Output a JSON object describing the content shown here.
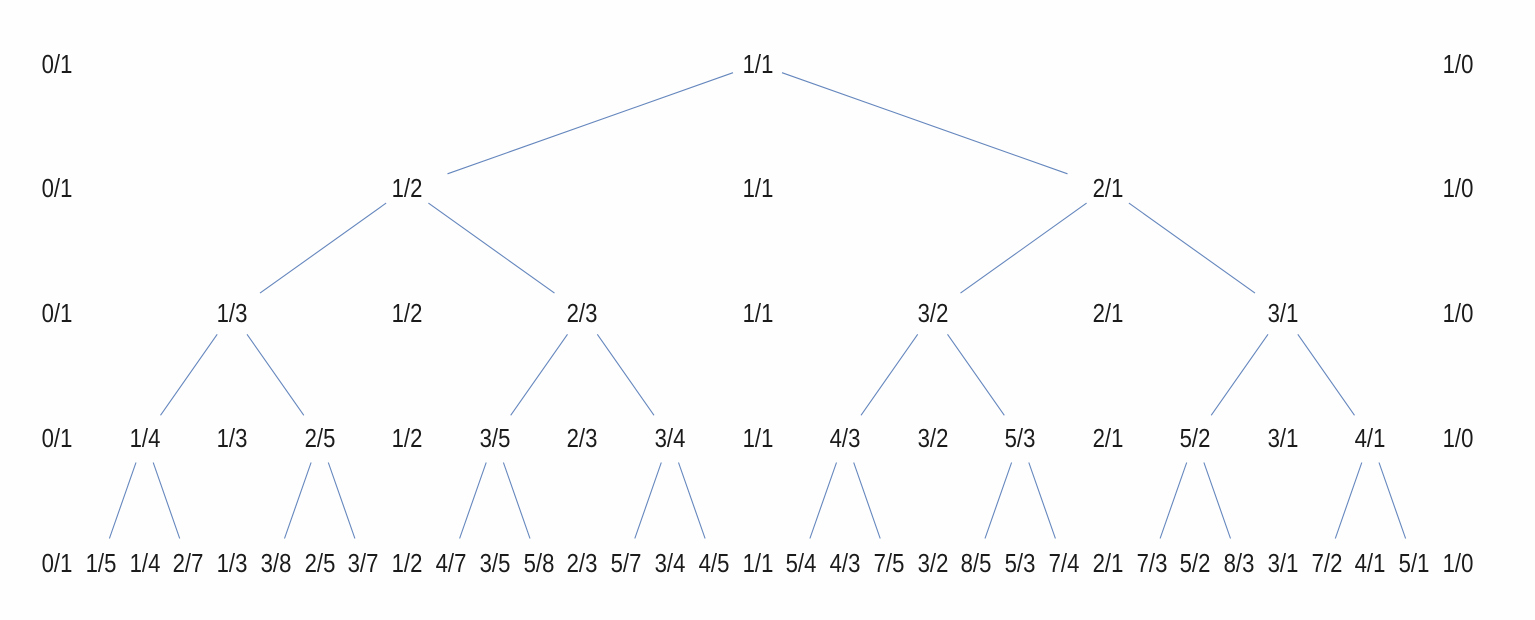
{
  "colors": {
    "background": "#fefefe",
    "edge": "#6486bd",
    "text": "#1b1b1b"
  },
  "tree": {
    "description": "stern-brocot-mediant-tree",
    "rows": [
      [
        "0/1",
        "1/1",
        "1/0"
      ],
      [
        "0/1",
        "1/2",
        "1/1",
        "2/1",
        "1/0"
      ],
      [
        "0/1",
        "1/3",
        "1/2",
        "2/3",
        "1/1",
        "3/2",
        "2/1",
        "3/1",
        "1/0"
      ],
      [
        "0/1",
        "1/4",
        "1/3",
        "2/5",
        "1/2",
        "3/5",
        "2/3",
        "3/4",
        "1/1",
        "4/3",
        "3/2",
        "5/3",
        "2/1",
        "5/2",
        "3/1",
        "4/1",
        "1/0"
      ],
      [
        "0/1",
        "1/5",
        "1/4",
        "2/7",
        "1/3",
        "3/8",
        "2/5",
        "3/7",
        "1/2",
        "4/7",
        "3/5",
        "5/8",
        "2/3",
        "5/7",
        "3/4",
        "4/5",
        "1/1",
        "5/4",
        "4/3",
        "7/5",
        "3/2",
        "8/5",
        "5/3",
        "7/4",
        "2/1",
        "7/3",
        "5/2",
        "8/3",
        "3/1",
        "7/2",
        "4/1",
        "5/1",
        "1/0"
      ]
    ],
    "edges": [
      [
        [
          0,
          1
        ],
        [
          1,
          1
        ]
      ],
      [
        [
          0,
          1
        ],
        [
          1,
          3
        ]
      ],
      [
        [
          1,
          1
        ],
        [
          2,
          1
        ]
      ],
      [
        [
          1,
          1
        ],
        [
          2,
          3
        ]
      ],
      [
        [
          1,
          3
        ],
        [
          2,
          5
        ]
      ],
      [
        [
          1,
          3
        ],
        [
          2,
          7
        ]
      ],
      [
        [
          2,
          1
        ],
        [
          3,
          1
        ]
      ],
      [
        [
          2,
          1
        ],
        [
          3,
          3
        ]
      ],
      [
        [
          2,
          3
        ],
        [
          3,
          5
        ]
      ],
      [
        [
          2,
          3
        ],
        [
          3,
          7
        ]
      ],
      [
        [
          2,
          5
        ],
        [
          3,
          9
        ]
      ],
      [
        [
          2,
          5
        ],
        [
          3,
          11
        ]
      ],
      [
        [
          2,
          7
        ],
        [
          3,
          13
        ]
      ],
      [
        [
          2,
          7
        ],
        [
          3,
          15
        ]
      ],
      [
        [
          3,
          1
        ],
        [
          4,
          1
        ]
      ],
      [
        [
          3,
          1
        ],
        [
          4,
          3
        ]
      ],
      [
        [
          3,
          3
        ],
        [
          4,
          5
        ]
      ],
      [
        [
          3,
          3
        ],
        [
          4,
          7
        ]
      ],
      [
        [
          3,
          5
        ],
        [
          4,
          9
        ]
      ],
      [
        [
          3,
          5
        ],
        [
          4,
          11
        ]
      ],
      [
        [
          3,
          7
        ],
        [
          4,
          13
        ]
      ],
      [
        [
          3,
          7
        ],
        [
          4,
          15
        ]
      ],
      [
        [
          3,
          9
        ],
        [
          4,
          17
        ]
      ],
      [
        [
          3,
          9
        ],
        [
          4,
          19
        ]
      ],
      [
        [
          3,
          11
        ],
        [
          4,
          21
        ]
      ],
      [
        [
          3,
          11
        ],
        [
          4,
          23
        ]
      ],
      [
        [
          3,
          13
        ],
        [
          4,
          25
        ]
      ],
      [
        [
          3,
          13
        ],
        [
          4,
          27
        ]
      ],
      [
        [
          3,
          15
        ],
        [
          4,
          29
        ]
      ],
      [
        [
          3,
          15
        ],
        [
          4,
          31
        ]
      ]
    ]
  }
}
